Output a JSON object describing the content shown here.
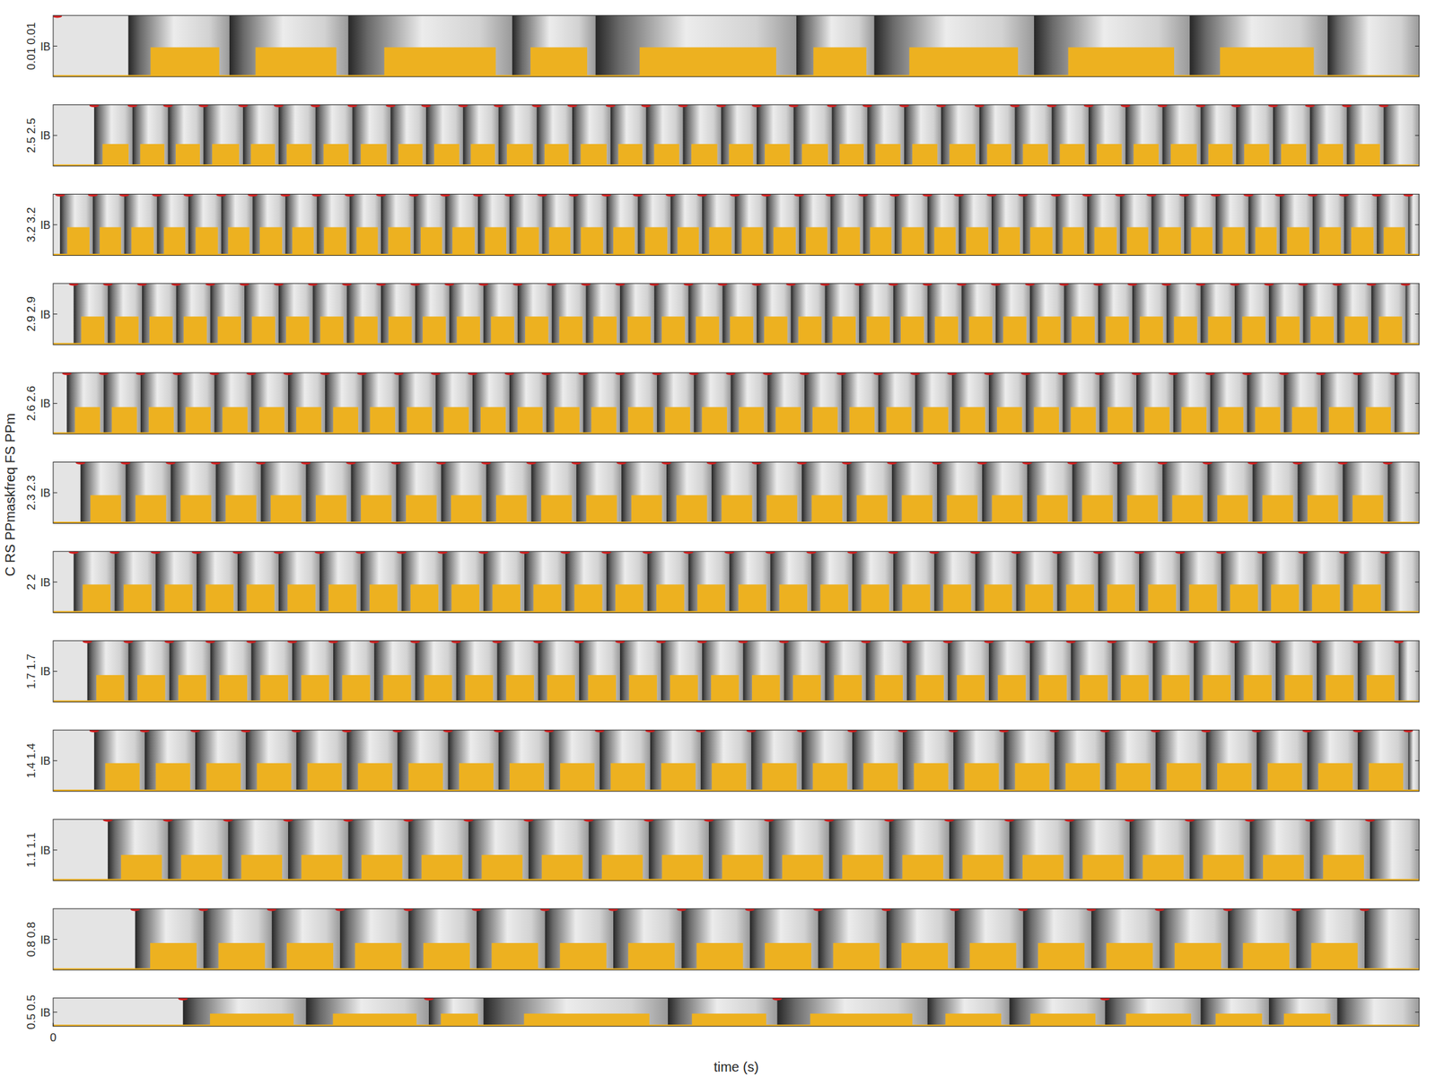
{
  "chart_data": {
    "type": "raster",
    "ylabel": "C RS PPmaskfreq FS PPm",
    "xlabel": "time (s)",
    "xlim": [
      0,
      100
    ],
    "xticks": [
      0
    ],
    "ylim": [
      0,
      1
    ],
    "yticks": [
      {
        "value": 0.5,
        "label": "IB"
      }
    ],
    "panels": [
      {
        "label": "0.01 0.01",
        "activity": 0.48,
        "bands": [
          5.5,
          12.9,
          21.6,
          33.6,
          39.7,
          54.4,
          60.1,
          71.8,
          83.2,
          93.3
        ],
        "dots": [
          0.3
        ]
      },
      {
        "label": "2.5 2.5",
        "activity": 0.36,
        "bands": [
          3,
          5.8,
          8.4,
          11,
          13.9,
          16.5,
          19.2,
          21.9,
          24.7,
          27.3,
          30,
          32.6,
          35.4,
          38,
          40.8,
          43.4,
          46.1,
          48.9,
          51.5,
          54.2,
          57,
          59.6,
          62.3,
          65,
          67.8,
          70.4,
          73.1,
          75.8,
          78.5,
          81.2,
          84,
          86.6,
          89.3,
          92,
          94.7,
          97.4
        ],
        "dots": [
          3,
          5.8,
          8.4,
          11,
          13.9,
          16.5,
          19.2,
          21.9,
          24.7,
          27.3,
          30,
          32.6,
          35.4,
          38,
          40.8,
          43.4,
          46.1,
          48.9,
          51.5,
          54.2,
          57,
          59.6,
          62.3,
          65,
          67.8,
          70.4,
          73.1,
          75.8,
          78.5,
          81.2,
          84,
          86.6,
          89.3,
          92,
          94.7,
          97.4
        ]
      },
      {
        "label": "3.2 3.2",
        "activity": 0.46,
        "bands": [
          0.5,
          2.9,
          5.2,
          7.6,
          9.9,
          12.3,
          14.6,
          17,
          19.3,
          21.7,
          24,
          26.4,
          28.7,
          31.1,
          33.4,
          35.8,
          38.1,
          40.5,
          42.8,
          45.2,
          47.5,
          49.9,
          52.2,
          54.6,
          56.9,
          59.3,
          61.6,
          64,
          66.3,
          68.7,
          71,
          73.4,
          75.7,
          78.1,
          80.4,
          82.8,
          85.1,
          87.5,
          89.8,
          92.2,
          94.5,
          96.9,
          99.2
        ],
        "dots": [
          0.5,
          2.9,
          5.2,
          7.6,
          9.9,
          12.3,
          14.6,
          17,
          19.3,
          21.7,
          24,
          26.4,
          28.7,
          31.1,
          33.4,
          35.8,
          38.1,
          40.5,
          42.8,
          45.2,
          47.5,
          49.9,
          52.2,
          54.6,
          56.9,
          59.3,
          61.6,
          64,
          66.3,
          68.7,
          71,
          73.4,
          75.7,
          78.1,
          80.4,
          82.8,
          85.1,
          87.5,
          89.8,
          92.2,
          94.5,
          96.9,
          99.2
        ]
      },
      {
        "label": "2.9 2.9",
        "activity": 0.46,
        "bands": [
          1.5,
          4,
          6.5,
          9,
          11.5,
          14,
          16.5,
          19,
          21.5,
          24,
          26.5,
          29,
          31.5,
          34,
          36.5,
          39,
          41.5,
          44,
          46.5,
          49,
          51.5,
          54,
          56.5,
          59,
          61.5,
          64,
          66.5,
          69,
          71.5,
          74,
          76.5,
          79,
          81.5,
          84,
          86.5,
          89,
          91.5,
          94,
          96.5,
          99
        ],
        "dots": [
          1.5,
          4,
          6.5,
          9,
          11.5,
          14,
          16.5,
          19,
          21.5,
          24,
          26.5,
          29,
          31.5,
          34,
          36.5,
          39,
          41.5,
          44,
          46.5,
          49,
          51.5,
          54,
          56.5,
          59,
          61.5,
          64,
          66.5,
          69,
          71.5,
          74,
          76.5,
          79,
          81.5,
          84,
          86.5,
          89,
          91.5,
          94,
          96.5,
          99
        ]
      },
      {
        "label": "2.6 2.6",
        "activity": 0.44,
        "bands": [
          1,
          3.7,
          6.4,
          9.1,
          11.8,
          14.5,
          17.2,
          19.9,
          22.6,
          25.3,
          28,
          30.7,
          33.4,
          36.1,
          38.8,
          41.5,
          44.2,
          46.9,
          49.6,
          52.3,
          55,
          57.7,
          60.4,
          63.1,
          65.8,
          68.5,
          71.2,
          73.9,
          76.6,
          79.3,
          82,
          84.7,
          87.4,
          90.1,
          92.8,
          95.5,
          98.2
        ],
        "dots": [
          1,
          3.7,
          6.4,
          9.1,
          11.8,
          14.5,
          17.2,
          19.9,
          22.6,
          25.3,
          28,
          30.7,
          33.4,
          36.1,
          38.8,
          41.5,
          44.2,
          46.9,
          49.6,
          52.3,
          55,
          57.7,
          60.4,
          63.1,
          65.8,
          68.5,
          71.2,
          73.9,
          76.6,
          79.3,
          82,
          84.7,
          87.4,
          90.1,
          92.8,
          95.5,
          98.2
        ]
      },
      {
        "label": "2.3 2.3",
        "activity": 0.46,
        "bands": [
          2,
          5.3,
          8.6,
          11.9,
          15.2,
          18.5,
          21.8,
          25.1,
          28.4,
          31.7,
          35,
          38.3,
          41.6,
          44.9,
          48.2,
          51.5,
          54.8,
          58.1,
          61.4,
          64.7,
          68,
          71.3,
          74.6,
          77.9,
          81.2,
          84.5,
          87.8,
          91.1,
          94.4,
          97.7
        ],
        "dots": [
          2,
          5.3,
          8.6,
          11.9,
          15.2,
          18.5,
          21.8,
          25.1,
          28.4,
          31.7,
          35,
          38.3,
          41.6,
          44.9,
          48.2,
          51.5,
          54.8,
          58.1,
          61.4,
          64.7,
          68,
          71.3,
          74.6,
          77.9,
          81.2,
          84.5,
          87.8,
          91.1,
          94.4,
          97.7
        ]
      },
      {
        "label": "2 2",
        "activity": 0.46,
        "bands": [
          1.5,
          4.5,
          7.5,
          10.5,
          13.5,
          16.5,
          19.5,
          22.5,
          25.5,
          28.5,
          31.5,
          34.5,
          37.5,
          40.5,
          43.5,
          46.5,
          49.5,
          52.5,
          55.5,
          58.5,
          61.5,
          64.5,
          67.5,
          70.5,
          73.5,
          76.5,
          79.5,
          82.5,
          85.5,
          88.5,
          91.5,
          94.5,
          97.5
        ],
        "dots": [
          1.5,
          4.5,
          7.5,
          10.5,
          13.5,
          16.5,
          19.5,
          22.5,
          25.5,
          28.5,
          31.5,
          34.5,
          37.5,
          40.5,
          43.5,
          46.5,
          49.5,
          52.5,
          55.5,
          58.5,
          61.5,
          64.5,
          67.5,
          70.5,
          73.5,
          76.5,
          79.5,
          82.5,
          85.5,
          88.5,
          91.5,
          94.5,
          97.5
        ]
      },
      {
        "label": "1.7 1.7",
        "activity": 0.44,
        "bands": [
          2.5,
          5.5,
          8.5,
          11.5,
          14.5,
          17.5,
          20.5,
          23.5,
          26.5,
          29.5,
          32.5,
          35.5,
          38.5,
          41.5,
          44.5,
          47.5,
          50.5,
          53.5,
          56.5,
          59.5,
          62.5,
          65.5,
          68.5,
          71.5,
          74.5,
          77.5,
          80.5,
          83.5,
          86.5,
          89.5,
          92.5,
          95.5,
          98.5
        ],
        "dots": [
          2.5,
          5.5,
          8.5,
          11.5,
          14.5,
          17.5,
          20.5,
          23.5,
          26.5,
          29.5,
          32.5,
          35.5,
          38.5,
          41.5,
          44.5,
          47.5,
          50.5,
          53.5,
          56.5,
          59.5,
          62.5,
          65.5,
          68.5,
          71.5,
          74.5,
          77.5,
          80.5,
          83.5,
          86.5,
          89.5,
          92.5,
          95.5,
          98.5
        ]
      },
      {
        "label": "1.4 1.4",
        "activity": 0.46,
        "bands": [
          3,
          6.7,
          10.4,
          14.1,
          17.8,
          21.5,
          25.2,
          28.9,
          32.6,
          36.3,
          40,
          43.7,
          47.4,
          51.1,
          54.8,
          58.5,
          62.2,
          65.9,
          69.6,
          73.3,
          77,
          80.7,
          84.4,
          88.1,
          91.8,
          95.5,
          99.2
        ],
        "dots": [
          3,
          6.7,
          10.4,
          14.1,
          17.8,
          21.5,
          25.2,
          28.9,
          32.6,
          36.3,
          40,
          43.7,
          47.4,
          51.1,
          54.8,
          58.5,
          62.2,
          65.9,
          69.6,
          73.3,
          77,
          80.7,
          84.4,
          88.1,
          91.8,
          95.5,
          99.2
        ]
      },
      {
        "label": "1.1 1.1",
        "activity": 0.42,
        "bands": [
          4,
          8.4,
          12.8,
          17.2,
          21.6,
          26,
          30.4,
          34.8,
          39.2,
          43.6,
          48,
          52.4,
          56.8,
          61.2,
          65.6,
          70,
          74.4,
          78.8,
          83.2,
          87.6,
          92,
          96.4
        ],
        "dots": [
          4,
          8.4,
          12.8,
          17.2,
          21.6,
          26,
          30.4,
          34.8,
          39.2,
          43.6,
          48,
          52.4,
          56.8,
          61.2,
          65.6,
          70,
          74.4,
          78.8,
          83.2,
          87.6,
          92,
          96.4
        ]
      },
      {
        "label": "0.8 0.8",
        "activity": 0.44,
        "bands": [
          6,
          11,
          16,
          21,
          26,
          31,
          36,
          41,
          46,
          51,
          56,
          61,
          66,
          71,
          76,
          81,
          86,
          91,
          96
        ],
        "dots": [
          6,
          11,
          16,
          21,
          26,
          31,
          36,
          41,
          46,
          51,
          56,
          61,
          66,
          71,
          76,
          81,
          86,
          91,
          96
        ]
      },
      {
        "label": "0.5 0.5",
        "activity": 0.45,
        "bands": [
          9.5,
          18.5,
          27.5,
          31.5,
          45,
          53,
          64,
          70,
          77,
          84,
          89,
          94
        ],
        "dots": [
          9.5,
          27.5,
          53,
          77
        ]
      }
    ]
  }
}
